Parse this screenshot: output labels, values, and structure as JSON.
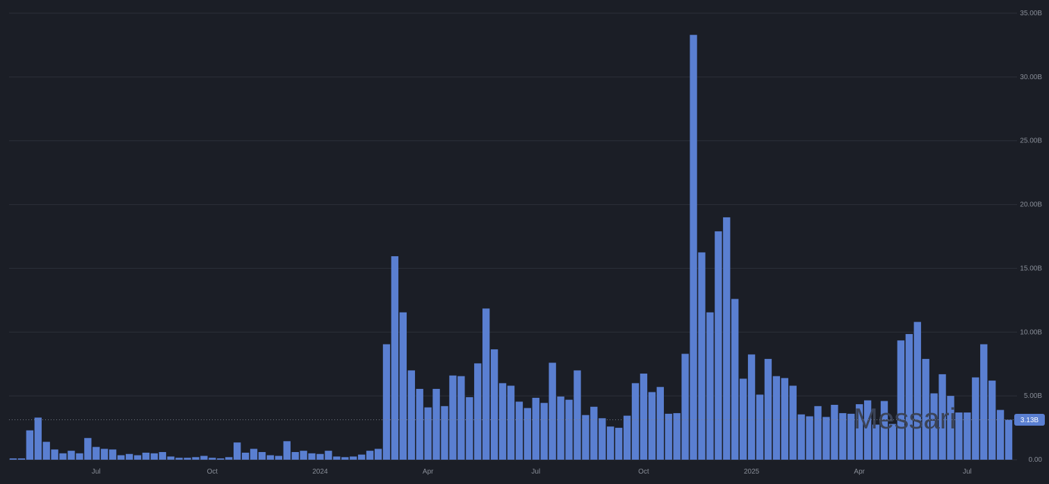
{
  "watermark": "Messari",
  "colors": {
    "background": "#1b1e26",
    "bar": "#5a7fd1",
    "badge": "#5a7fd1",
    "grid": "#2c303a",
    "text": "#8a8f99"
  },
  "chart_data": {
    "type": "bar",
    "title": "",
    "xlabel": "",
    "ylabel": "",
    "ylim": [
      0,
      35
    ],
    "y_unit": "B",
    "y_ticks": [
      "0.00",
      "5.00B",
      "10.00B",
      "15.00B",
      "20.00B",
      "25.00B",
      "30.00B",
      "35.00B"
    ],
    "x_ticks": [
      {
        "label": "Jul",
        "bar_index": 10
      },
      {
        "label": "Oct",
        "bar_index": 24
      },
      {
        "label": "2024",
        "bar_index": 37
      },
      {
        "label": "Apr",
        "bar_index": 50
      },
      {
        "label": "Jul",
        "bar_index": 63
      },
      {
        "label": "Oct",
        "bar_index": 76
      },
      {
        "label": "2025",
        "bar_index": 89
      },
      {
        "label": "Apr",
        "bar_index": 102
      },
      {
        "label": "Jul",
        "bar_index": 115
      }
    ],
    "last_value_label": "3.13B",
    "last_value": 3.13,
    "values": [
      0.1,
      0.1,
      2.3,
      3.3,
      1.4,
      0.8,
      0.5,
      0.7,
      0.5,
      1.7,
      1.0,
      0.85,
      0.8,
      0.35,
      0.45,
      0.35,
      0.55,
      0.5,
      0.6,
      0.25,
      0.15,
      0.15,
      0.2,
      0.3,
      0.15,
      0.1,
      0.2,
      1.35,
      0.55,
      0.85,
      0.6,
      0.35,
      0.3,
      1.45,
      0.6,
      0.7,
      0.5,
      0.45,
      0.7,
      0.25,
      0.2,
      0.25,
      0.4,
      0.7,
      0.85,
      9.05,
      15.95,
      11.55,
      7.0,
      5.55,
      4.1,
      5.55,
      4.2,
      6.6,
      6.55,
      4.9,
      7.55,
      11.85,
      8.65,
      6.0,
      5.8,
      4.55,
      4.05,
      4.85,
      4.45,
      7.6,
      4.95,
      4.7,
      7.0,
      3.5,
      4.15,
      3.25,
      2.6,
      2.5,
      3.45,
      6.0,
      6.75,
      5.3,
      5.7,
      3.6,
      3.65,
      8.3,
      33.3,
      16.25,
      11.55,
      17.9,
      19.0,
      12.6,
      6.35,
      8.25,
      5.1,
      7.9,
      6.55,
      6.4,
      5.8,
      3.55,
      3.4,
      4.2,
      3.35,
      4.3,
      3.65,
      3.6,
      4.35,
      4.65,
      2.75,
      4.6,
      2.8,
      9.35,
      9.85,
      10.8,
      7.9,
      5.2,
      6.7,
      5.0,
      3.7,
      3.7,
      6.45,
      9.05,
      6.2,
      3.9,
      3.13
    ]
  }
}
